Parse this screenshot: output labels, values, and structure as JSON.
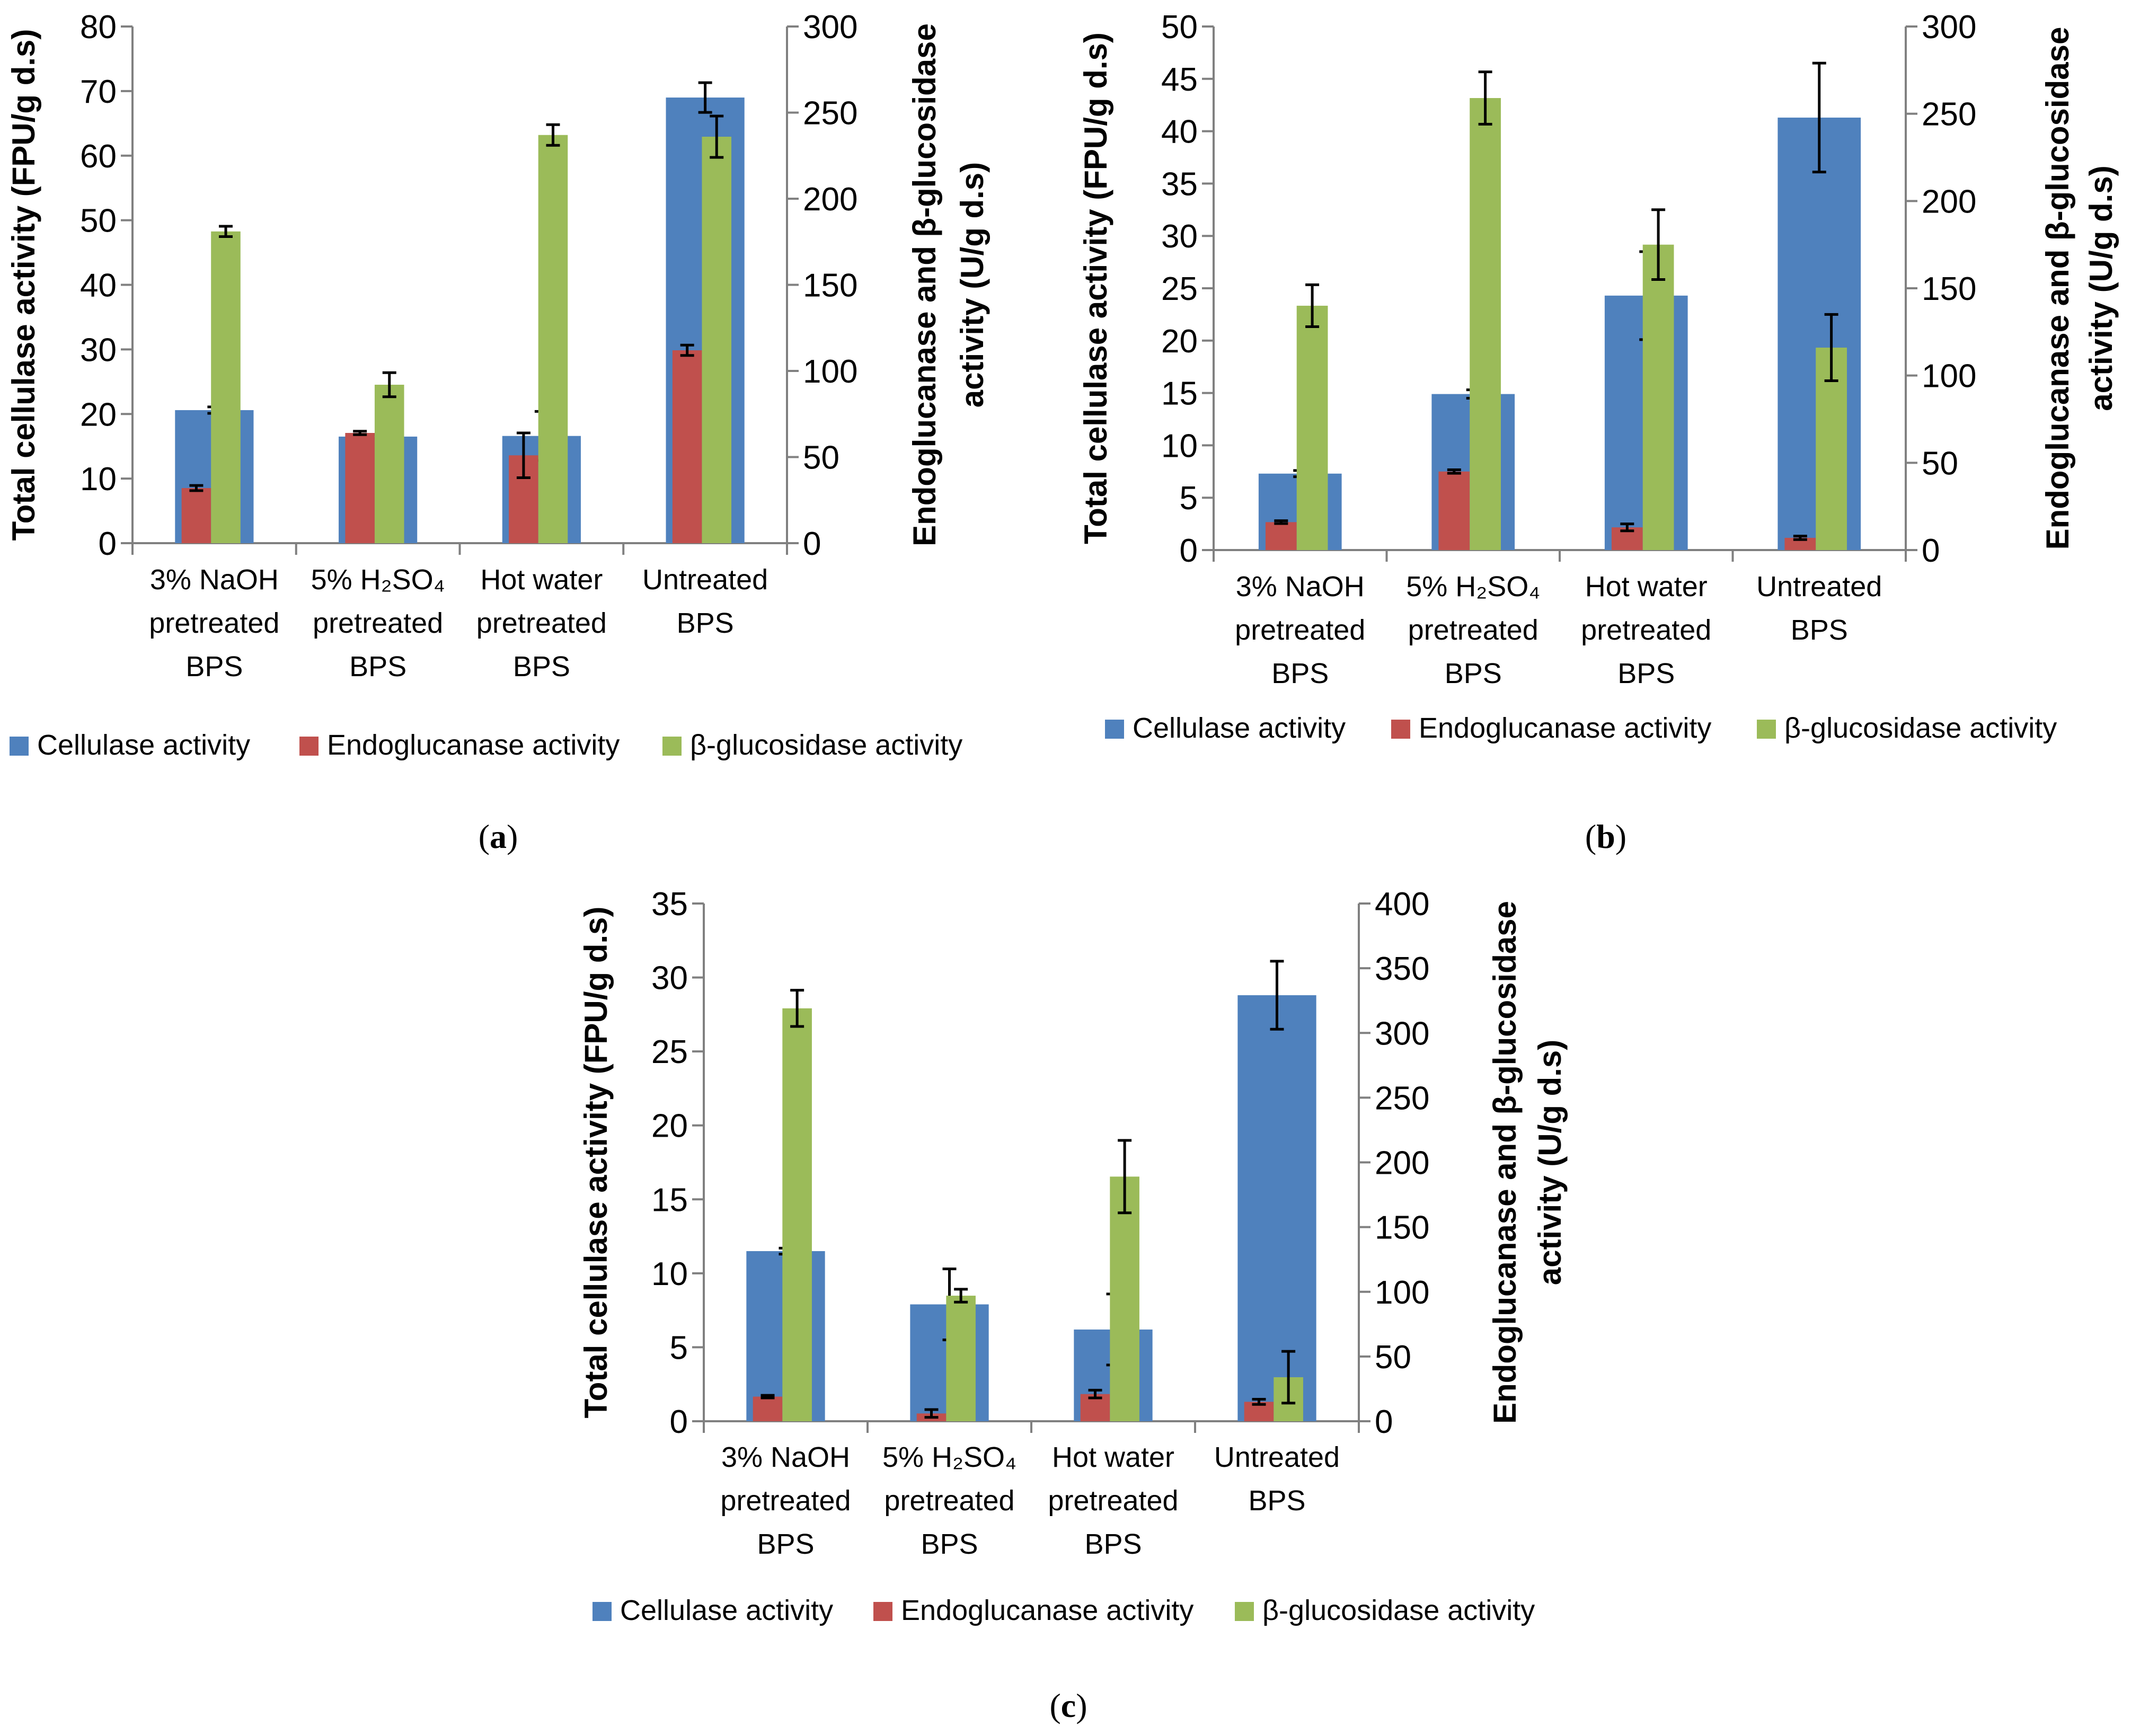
{
  "colors": {
    "cellulase": "#4f81bd",
    "endoglucanase": "#c0504d",
    "bglucosidase": "#9bbb59",
    "axis": "#808080"
  },
  "chart_data": [
    {
      "panel": "a",
      "type": "bar",
      "categories": [
        [
          "3% NaOH",
          "pretreated",
          "BPS"
        ],
        [
          "5% H₂SO₄",
          "pretreated",
          "BPS"
        ],
        [
          "Hot water",
          "pretreated",
          "BPS"
        ],
        [
          "Untreated",
          "BPS"
        ]
      ],
      "ylabel": "Total cellulase activity (FPU/g d.s)",
      "y2label": [
        "Endoglucanase and β-glucosidase",
        "activity (U/g d.s)"
      ],
      "ylim": [
        0,
        80
      ],
      "yticks": [
        0,
        10,
        20,
        30,
        40,
        50,
        60,
        70,
        80
      ],
      "y2lim": [
        0,
        300
      ],
      "y2ticks": [
        0,
        50,
        100,
        150,
        200,
        250,
        300
      ],
      "series": [
        {
          "name": "Cellulase activity",
          "axis": "left",
          "values": [
            20.6,
            16.5,
            16.6,
            69.0
          ],
          "errors": [
            0.5,
            0.3,
            3.8,
            2.3
          ]
        },
        {
          "name": "Endoglucanase activity",
          "axis": "right",
          "values": [
            32,
            64,
            51,
            112
          ],
          "errors": [
            1.5,
            1.0,
            13,
            3
          ]
        },
        {
          "name": "β-glucosidase activity",
          "axis": "right",
          "values": [
            181,
            92,
            237,
            236
          ],
          "errors": [
            3,
            7,
            6,
            12
          ]
        }
      ],
      "legend": [
        "Cellulase activity",
        "Endoglucanase activity",
        "β-glucosidase activity"
      ]
    },
    {
      "panel": "b",
      "type": "bar",
      "categories": [
        [
          "3% NaOH",
          "pretreated",
          "BPS"
        ],
        [
          "5% H₂SO₄",
          "pretreated",
          "BPS"
        ],
        [
          "Hot water",
          "pretreated",
          "BPS"
        ],
        [
          "Untreated",
          "BPS"
        ]
      ],
      "ylabel": "Total cellulase activity (FPU/g d.s)",
      "y2label": [
        "Endoglucanase and β-glucosidase",
        "activity (U/g d.s)"
      ],
      "ylim": [
        0,
        50
      ],
      "yticks": [
        0,
        5,
        10,
        15,
        20,
        25,
        30,
        35,
        40,
        45,
        50
      ],
      "y2lim": [
        0,
        300
      ],
      "y2ticks": [
        0,
        50,
        100,
        150,
        200,
        250,
        300
      ],
      "series": [
        {
          "name": "Cellulase activity",
          "axis": "left",
          "values": [
            7.3,
            14.9,
            24.3,
            41.3
          ],
          "errors": [
            0.3,
            0.4,
            4.2,
            5.2
          ]
        },
        {
          "name": "Endoglucanase activity",
          "axis": "right",
          "values": [
            16,
            45,
            13,
            7
          ],
          "errors": [
            0.8,
            1.0,
            2,
            1
          ]
        },
        {
          "name": "β-glucosidase activity",
          "axis": "right",
          "values": [
            140,
            259,
            175,
            116
          ],
          "errors": [
            12,
            15,
            20,
            19
          ]
        }
      ],
      "legend": [
        "Cellulase activity",
        "Endoglucanase activity",
        "β-glucosidase activity"
      ]
    },
    {
      "panel": "c",
      "type": "bar",
      "categories": [
        [
          "3% NaOH",
          "pretreated",
          "BPS"
        ],
        [
          "5% H₂SO₄",
          "pretreated",
          "BPS"
        ],
        [
          "Hot water",
          "pretreated",
          "BPS"
        ],
        [
          "Untreated",
          "BPS"
        ]
      ],
      "ylabel": "Total cellulase activity (FPU/g d.s)",
      "y2label": [
        "Endoglucanase and β-glucosidase",
        "activity (U/g d.s)"
      ],
      "ylim": [
        0,
        35
      ],
      "yticks": [
        0,
        5,
        10,
        15,
        20,
        25,
        30,
        35
      ],
      "y2lim": [
        0,
        400
      ],
      "y2ticks": [
        0,
        50,
        100,
        150,
        200,
        250,
        300,
        350,
        400
      ],
      "series": [
        {
          "name": "Cellulase activity",
          "axis": "left",
          "values": [
            11.5,
            7.9,
            6.2,
            28.8
          ],
          "errors": [
            0.2,
            2.4,
            2.4,
            2.3
          ]
        },
        {
          "name": "Endoglucanase activity",
          "axis": "right",
          "values": [
            19,
            6,
            21,
            15
          ],
          "errors": [
            1,
            3,
            3,
            2
          ]
        },
        {
          "name": "β-glucosidase activity",
          "axis": "right",
          "values": [
            319,
            97,
            189,
            34
          ],
          "errors": [
            14,
            5,
            28,
            20
          ]
        }
      ],
      "legend": [
        "Cellulase activity",
        "Endoglucanase activity",
        "β-glucosidase activity"
      ]
    }
  ],
  "panel_labels": [
    "a",
    "b",
    "c"
  ]
}
